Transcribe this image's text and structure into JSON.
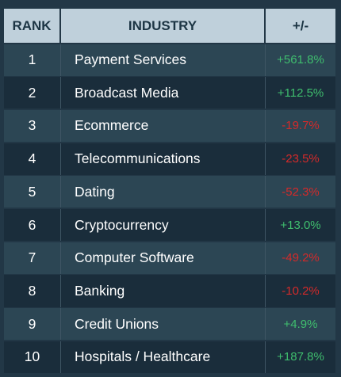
{
  "header": {
    "rank": "RANK",
    "industry": "INDUSTRY",
    "change": "+/-"
  },
  "rows": [
    {
      "rank": "1",
      "industry": "Payment Services",
      "change": "+561.8%",
      "direction": "up"
    },
    {
      "rank": "2",
      "industry": "Broadcast Media",
      "change": "+112.5%",
      "direction": "up"
    },
    {
      "rank": "3",
      "industry": "Ecommerce",
      "change": "-19.7%",
      "direction": "down"
    },
    {
      "rank": "4",
      "industry": "Telecommunications",
      "change": "-23.5%",
      "direction": "down"
    },
    {
      "rank": "5",
      "industry": "Dating",
      "change": "-52.3%",
      "direction": "down"
    },
    {
      "rank": "6",
      "industry": "Cryptocurrency",
      "change": "+13.0%",
      "direction": "up"
    },
    {
      "rank": "7",
      "industry": "Computer Software",
      "change": "-49.2%",
      "direction": "down"
    },
    {
      "rank": "8",
      "industry": "Banking",
      "change": "-10.2%",
      "direction": "down"
    },
    {
      "rank": "9",
      "industry": "Credit Unions",
      "change": "+4.9%",
      "direction": "up"
    },
    {
      "rank": "10",
      "industry": "Hospitals / Healthcare",
      "change": "+187.8%",
      "direction": "up"
    }
  ],
  "colors": {
    "positive": "#3fbe6e",
    "negative": "#d32a2a",
    "header_bg": "#bfd0db",
    "row_odd": "#2c4654",
    "row_even": "#1a2d3b"
  }
}
